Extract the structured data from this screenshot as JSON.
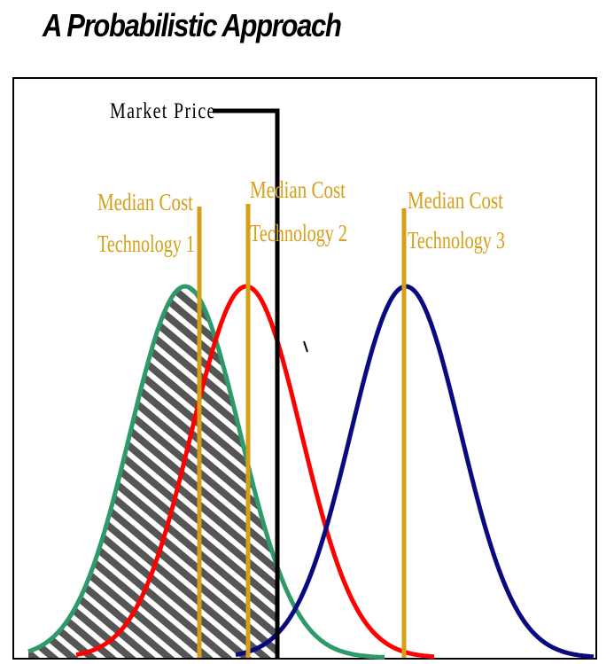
{
  "title": "A Probabilistic Approach",
  "labels": {
    "market_price": "Market Price",
    "tech1_line1": "Median Cost",
    "tech1_line2": "Technology 1",
    "tech2_line1": "Median Cost",
    "tech2_line2": "Technology 2",
    "tech3_line1": "Median Cost",
    "tech3_line2": "Technology 3"
  },
  "colors": {
    "technology_1": "#2e9a6a",
    "technology_2": "#ff0000",
    "technology_3": "#0a0a80",
    "median_lines": "#d4a017",
    "market_price": "#000000",
    "hatch_area": "#555555"
  }
}
